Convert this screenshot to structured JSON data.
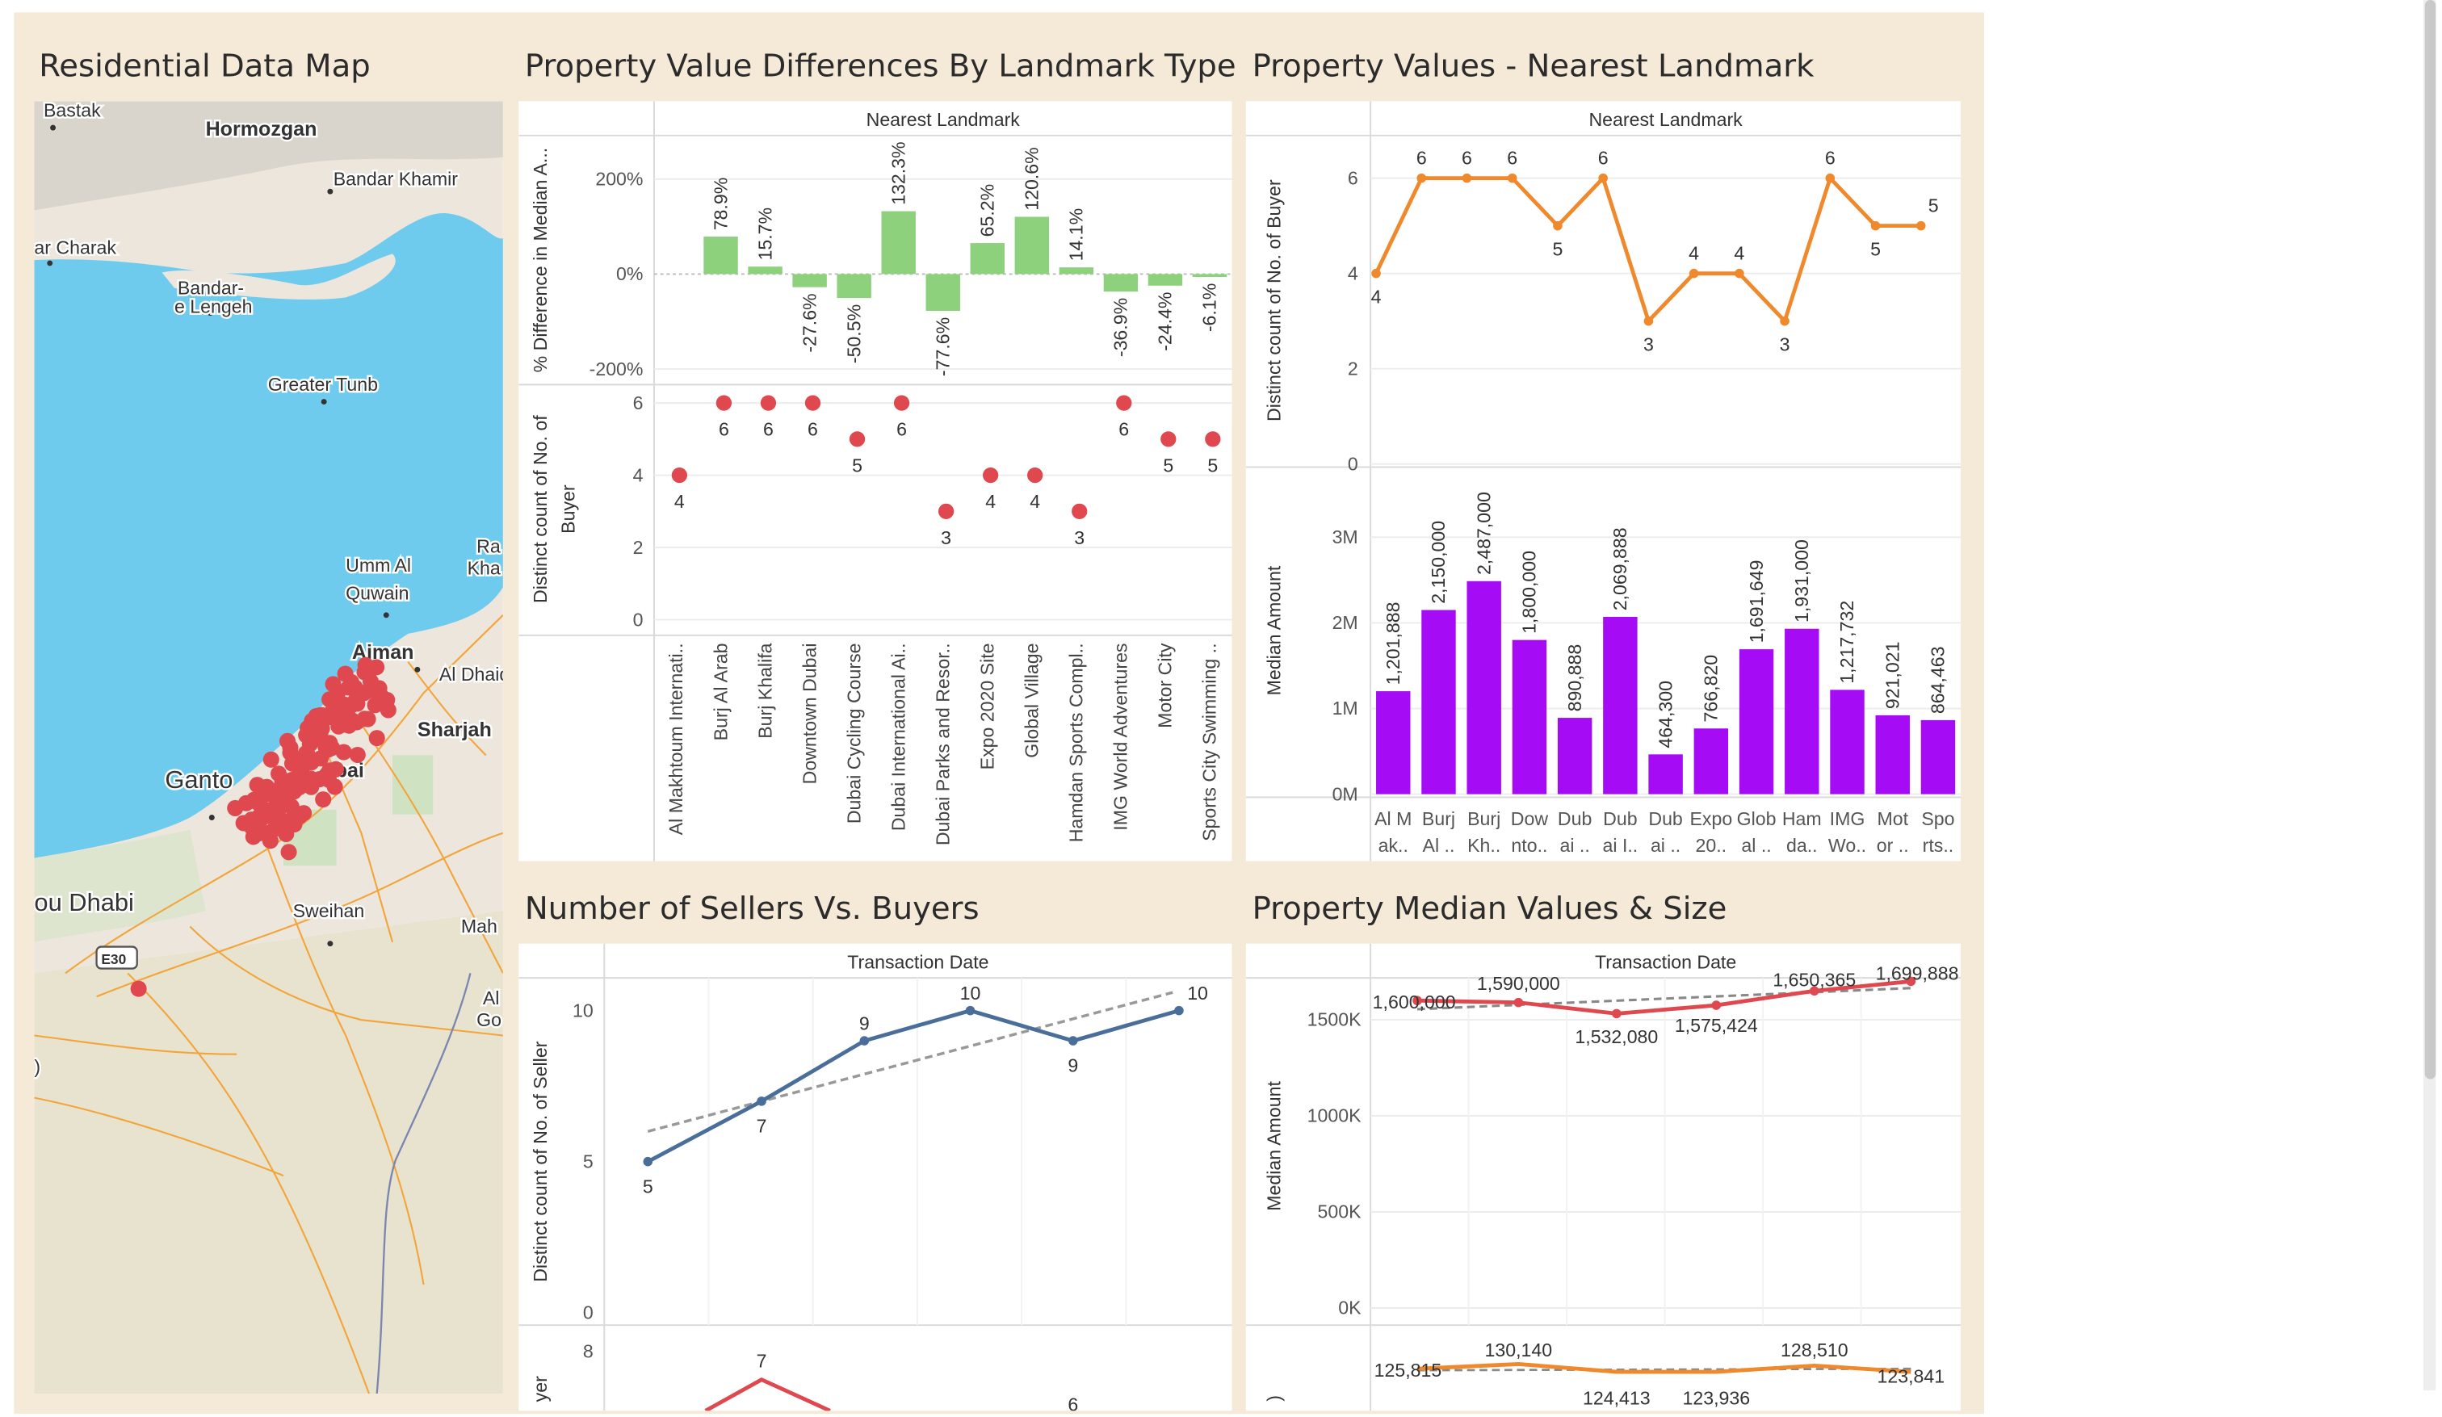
{
  "dashboard": {
    "titles": {
      "map": "Residential Data Map",
      "diff": "Property Value Differences By Landmark Type",
      "nearest": "Property Values - Nearest Landmark",
      "sellers": "Number of Sellers Vs. Buyers",
      "median": "Property Median Values & Size"
    }
  },
  "map": {
    "labels": [
      {
        "text": "Bastak",
        "bold": false
      },
      {
        "text": "Hormozgan",
        "bold": true
      },
      {
        "text": "Bandar Khamir",
        "bold": false
      },
      {
        "text": "ar Charak",
        "bold": false
      },
      {
        "text": "Bandar-",
        "bold": false
      },
      {
        "text": "e Lengeh",
        "bold": false
      },
      {
        "text": "Greater Tunb",
        "bold": false
      },
      {
        "text": "Umm Al",
        "bold": false
      },
      {
        "text": "Quwain",
        "bold": false
      },
      {
        "text": "Ra",
        "bold": false
      },
      {
        "text": "Kha",
        "bold": false
      },
      {
        "text": "Ajman",
        "bold": true
      },
      {
        "text": "Al Dhaid",
        "bold": false
      },
      {
        "text": "Sharjah",
        "bold": true
      },
      {
        "text": "Ganto",
        "bold": false
      },
      {
        "text": "bai",
        "bold": true
      },
      {
        "text": "ou Dhabi",
        "bold": false
      },
      {
        "text": "Sweihan",
        "bold": false
      },
      {
        "text": "Mah",
        "bold": false
      },
      {
        "text": "Al",
        "bold": false
      },
      {
        "text": "Go",
        "bold": false
      },
      {
        "text": "E30",
        "bold": true
      },
      {
        "text": ")",
        "bold": false
      }
    ],
    "colors": {
      "water": "#6fcbee",
      "land": "#ece6dc",
      "desert": "#e8e3cf",
      "mountain": "#dad5cc",
      "road": "#f2a53b",
      "green": "#cfe3c2",
      "dot": "#e0484f",
      "border": "#7a86b0"
    }
  },
  "chart_data": [
    {
      "id": "diff",
      "type": "bar",
      "header": "Nearest Landmark",
      "ylabel": "% Difference in Median A...",
      "yticks": [
        "200%",
        "0%",
        "-200%"
      ],
      "ylim": [
        -200,
        200
      ],
      "color": "#8ed17d",
      "categories": [
        "Al Makhtoum Internati..",
        "Burj Al Arab",
        "Burj Khalifa",
        "Downtown Dubai",
        "Dubai Cycling Course",
        "Dubai International Ai..",
        "Dubai Parks and Resor..",
        "Expo 2020 Site",
        "Global Village",
        "Hamdan Sports Compl..",
        "IMG World Adventures",
        "Motor City",
        "Sports City Swimming .."
      ],
      "values": [
        null,
        78.9,
        15.7,
        -27.6,
        -50.5,
        132.3,
        -77.6,
        65.2,
        120.6,
        14.1,
        -36.9,
        -24.4,
        -6.1
      ],
      "labels": [
        "",
        "78.9%",
        "15.7%",
        "-27.6%",
        "-50.5%",
        "132.3%",
        "-77.6%",
        "65.2%",
        "120.6%",
        "14.1%",
        "-36.9%",
        "-24.4%",
        "-6.1%"
      ]
    },
    {
      "id": "buyers_dots",
      "type": "scatter",
      "ylabel": "Distinct count of No. of Buyer",
      "yticks": [
        "6",
        "4",
        "2",
        "0"
      ],
      "ylim": [
        0,
        6.8
      ],
      "color": "#e0484f",
      "values": [
        4,
        6,
        6,
        6,
        5,
        6,
        3,
        4,
        4,
        3,
        6,
        5,
        5
      ],
      "labels": [
        "4",
        "6",
        "6",
        "6",
        "5",
        "6",
        "3",
        "4",
        "4",
        "3",
        "6",
        "5",
        "5"
      ]
    },
    {
      "id": "nearest_line",
      "type": "line",
      "header": "Nearest Landmark",
      "ylabel": "Distinct count of No. of Buyer",
      "yticks": [
        "6",
        "4",
        "2",
        "0"
      ],
      "ylim": [
        0,
        6.7
      ],
      "color": "#f0892b",
      "values": [
        4,
        6,
        6,
        6,
        5,
        6,
        3,
        4,
        4,
        3,
        6,
        5,
        5
      ],
      "labels": [
        "4",
        "6",
        "6",
        "6",
        "5",
        "6",
        "3",
        "4",
        "4",
        "3",
        "6",
        "5",
        "5"
      ]
    },
    {
      "id": "median_bars",
      "type": "bar",
      "ylabel": "Median Amount",
      "yticks": [
        "3M",
        "2M",
        "1M",
        "0M"
      ],
      "ylim": [
        0,
        3000000
      ],
      "color": "#a50cf5",
      "categories": [
        "Al M ak..",
        "Burj Al ..",
        "Burj Kh..",
        "Dow nto..",
        "Dub ai ..",
        "Dub ai I..",
        "Dub ai ..",
        "Expo 20..",
        "Glob al ..",
        "Ham da..",
        "IMG Wo..",
        "Mot or ..",
        "Spo rts.."
      ],
      "category_lines": [
        [
          "Al M",
          "ak.."
        ],
        [
          "Burj",
          "Al .."
        ],
        [
          "Burj",
          "Kh.."
        ],
        [
          "Dow",
          "nto.."
        ],
        [
          "Dub",
          "ai .."
        ],
        [
          "Dub",
          "ai I.."
        ],
        [
          "Dub",
          "ai .."
        ],
        [
          "Expo",
          "20.."
        ],
        [
          "Glob",
          "al .."
        ],
        [
          "Ham",
          "da.."
        ],
        [
          "IMG",
          "Wo.."
        ],
        [
          "Mot",
          "or .."
        ],
        [
          "Spo",
          "rts.."
        ]
      ],
      "values": [
        1201888,
        2150000,
        2487000,
        1800000,
        890888,
        2069888,
        464300,
        766820,
        1691649,
        1931000,
        1217732,
        921021,
        864463
      ],
      "labels": [
        "1,201,888",
        "2,150,000",
        "2,487,000",
        "1,800,000",
        "890,888",
        "2,069,888",
        "464,300",
        "766,820",
        "1,691,649",
        "1,931,000",
        "1,217,732",
        "921,021",
        "864,463"
      ]
    },
    {
      "id": "sellers",
      "type": "line",
      "header": "Transaction Date",
      "ylabel": "Distinct count of No. of Seller",
      "yticks": [
        "10",
        "5",
        "0"
      ],
      "ylim": [
        0,
        10
      ],
      "color": "#4a6e9a",
      "trend_color": "#999999",
      "values": [
        5,
        7,
        9,
        10,
        9,
        10
      ],
      "labels": [
        "5",
        "7",
        "9",
        "10",
        "9",
        "10"
      ],
      "trend": [
        6,
        10.6
      ]
    },
    {
      "id": "buyers_lower",
      "type": "line",
      "ylabel": "yer",
      "yticks": [
        "8"
      ],
      "color": "#e0484f",
      "visible_labels": [
        "7",
        "6"
      ]
    },
    {
      "id": "median_values",
      "type": "line",
      "header": "Transaction Date",
      "ylabel": "Median Amount",
      "yticks": [
        "1500K",
        "1000K",
        "500K",
        "0K"
      ],
      "ylim": [
        0,
        1800000
      ],
      "color": "#e0484f",
      "trend_color": "#888888",
      "values": [
        1600000,
        1590000,
        1532080,
        1575424,
        1650365,
        1699888
      ],
      "labels": [
        "1,600,000",
        "1,590,000",
        "1,532,080",
        "1,575,424",
        "1,650,365",
        "1,699,888"
      ]
    },
    {
      "id": "size_lower",
      "type": "line",
      "ylabel": ")",
      "color": "#f0892b",
      "values": [
        125815,
        130140,
        124413,
        123936,
        128510,
        123841
      ],
      "labels": [
        "125,815",
        "130,140",
        "124,413",
        "123,936",
        "128,510",
        "123,841"
      ]
    }
  ]
}
